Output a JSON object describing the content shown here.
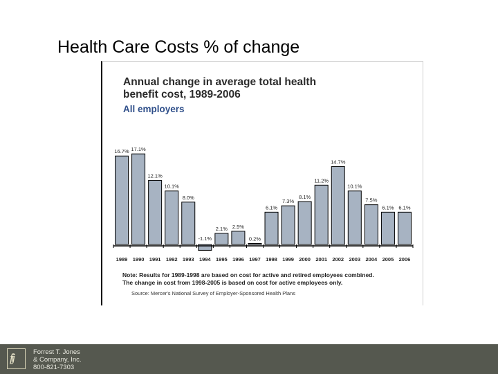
{
  "slide": {
    "title": "Health Care Costs % of change"
  },
  "chart_data": {
    "type": "bar",
    "title_line1": "Annual change in average total health",
    "title_line2": "benefit cost, 1989-2006",
    "subtitle": "All employers",
    "categories": [
      "1989",
      "1990",
      "1991",
      "1992",
      "1993",
      "1994",
      "1995",
      "1996",
      "1997",
      "1998",
      "1999",
      "2000",
      "2001",
      "2002",
      "2003",
      "2004",
      "2005",
      "2006"
    ],
    "values": [
      16.7,
      17.1,
      12.1,
      10.1,
      8.0,
      -1.1,
      2.1,
      2.5,
      0.2,
      6.1,
      7.3,
      8.1,
      11.2,
      14.7,
      10.1,
      7.5,
      6.1,
      6.1
    ],
    "data_labels": [
      "16.7%",
      "17.1%",
      "12.1%",
      "10.1%",
      "8.0%",
      "-1.1%",
      "2.1%",
      "2.5%",
      "0.2%",
      "6.1%",
      "7.3%",
      "8.1%",
      "11.2%",
      "14.7%",
      "10.1%",
      "7.5%",
      "6.1%",
      "6.1%"
    ],
    "ylim": [
      -2,
      18
    ],
    "grid": false,
    "xlabel": "",
    "ylabel": "",
    "colors": {
      "bar_fill": "#a7b3c2",
      "bar_stroke": "#000000",
      "axis": "#000000",
      "title": "#2b2b2b",
      "subtitle": "#2f4f8a"
    }
  },
  "note": {
    "line1": "Note:  Results for 1989-1998 are based on cost for active and retired employees combined.",
    "line2": "The change in cost from 1998-2005 is based on cost for active employees only."
  },
  "source": "Source: Mercer's National Survey of Employer-Sponsored Health Plans",
  "footer": {
    "logo_text": "fij",
    "company_line1": "Forrest T. Jones",
    "company_line2": "& Company, Inc.",
    "phone": "800-821-7303",
    "background": "#55584f"
  }
}
